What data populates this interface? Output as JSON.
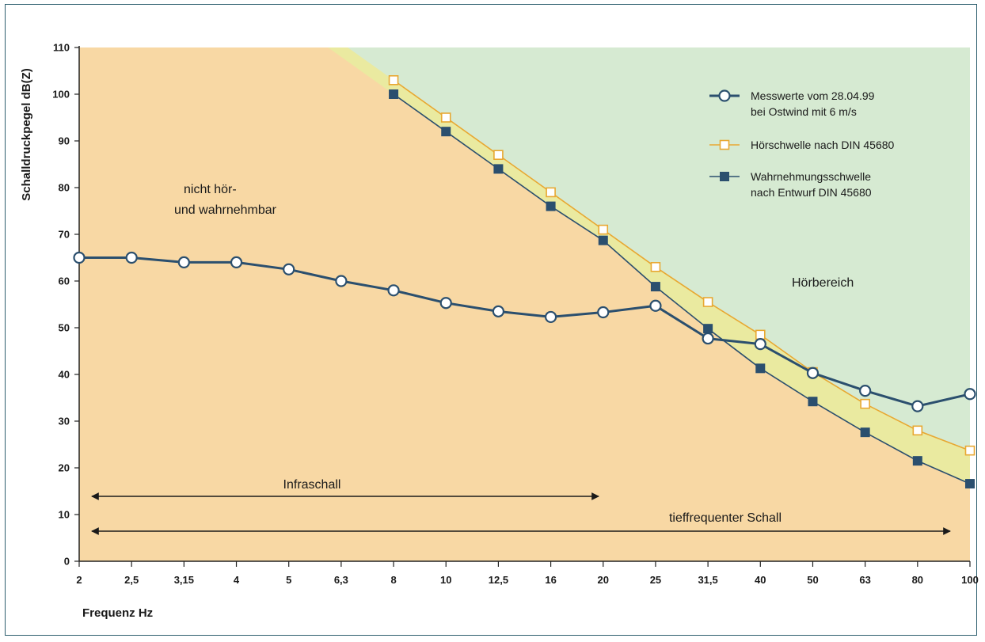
{
  "chart_data": {
    "type": "line",
    "ylabel": "Schalldruckpegel dB(Z)",
    "xlabel": "Frequenz Hz",
    "categories": [
      "2",
      "2,5",
      "3,15",
      "4",
      "5",
      "6,3",
      "8",
      "10",
      "12,5",
      "16",
      "20",
      "25",
      "31,5",
      "40",
      "50",
      "63",
      "80",
      "100"
    ],
    "yticks": [
      0,
      10,
      20,
      30,
      40,
      50,
      60,
      70,
      80,
      90,
      100,
      110
    ],
    "ylim": [
      0,
      110
    ],
    "grid": false,
    "legend_position": "top-right",
    "series": [
      {
        "name_lines": [
          "Messwerte vom 28.04.99",
          "bei Ostwind mit 6 m/s"
        ],
        "marker": "circle",
        "color": "#2b4f6e",
        "values": [
          65,
          65,
          64,
          64,
          62.5,
          60,
          58,
          55.3,
          53.5,
          52.3,
          53.3,
          54.7,
          47.7,
          46.5,
          40.3,
          36.5,
          33.2,
          35.8
        ]
      },
      {
        "name_lines": [
          "Hörschwelle nach DIN 45680"
        ],
        "marker": "square-open",
        "color": "#e8a832",
        "values": [
          null,
          null,
          null,
          null,
          null,
          null,
          103,
          95,
          87,
          79,
          71,
          63,
          55.5,
          48.5,
          40.5,
          33.7,
          28,
          23.7
        ]
      },
      {
        "name_lines": [
          "Wahrnehmungsschwelle",
          "nach Entwurf DIN 45680"
        ],
        "marker": "square-filled",
        "color": "#2b4f6e",
        "values": [
          null,
          null,
          null,
          null,
          null,
          null,
          100,
          92,
          84,
          76,
          68.7,
          58.8,
          49.8,
          41.3,
          34.2,
          27.6,
          21.5,
          16.6
        ]
      }
    ],
    "annotations": {
      "region_not_audible": [
        "nicht hör-",
        "und wahrnehmbar"
      ],
      "region_audible": "Hörbereich",
      "infraschall": "Infraschall",
      "tieffrequent": "tieffrequenter Schall"
    },
    "colors": {
      "not_audible_fill": "#f8d8a4",
      "between_fill": "#eaeaa0",
      "audible_fill": "#d6ead2",
      "line_dark": "#2b4f6e",
      "line_orange": "#e8a832"
    }
  }
}
